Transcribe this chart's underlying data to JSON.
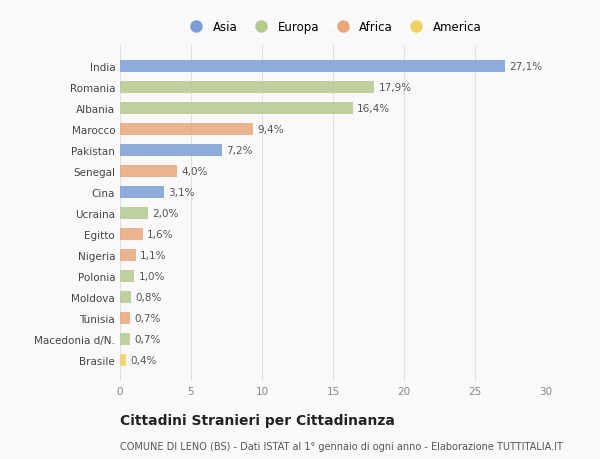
{
  "countries": [
    "India",
    "Romania",
    "Albania",
    "Marocco",
    "Pakistan",
    "Senegal",
    "Cina",
    "Ucraina",
    "Egitto",
    "Nigeria",
    "Polonia",
    "Moldova",
    "Tunisia",
    "Macedonia d/N.",
    "Brasile"
  ],
  "values": [
    27.1,
    17.9,
    16.4,
    9.4,
    7.2,
    4.0,
    3.1,
    2.0,
    1.6,
    1.1,
    1.0,
    0.8,
    0.7,
    0.7,
    0.4
  ],
  "labels": [
    "27,1%",
    "17,9%",
    "16,4%",
    "9,4%",
    "7,2%",
    "4,0%",
    "3,1%",
    "2,0%",
    "1,6%",
    "1,1%",
    "1,0%",
    "0,8%",
    "0,7%",
    "0,7%",
    "0,4%"
  ],
  "continents": [
    "Asia",
    "Europa",
    "Europa",
    "Africa",
    "Asia",
    "Africa",
    "Asia",
    "Europa",
    "Africa",
    "Africa",
    "Europa",
    "Europa",
    "Africa",
    "Europa",
    "America"
  ],
  "colors": {
    "Asia": "#7b9fd4",
    "Europa": "#b5c98e",
    "Africa": "#e8a87c",
    "America": "#f0d060"
  },
  "legend_order": [
    "Asia",
    "Europa",
    "Africa",
    "America"
  ],
  "title": "Cittadini Stranieri per Cittadinanza",
  "subtitle": "COMUNE DI LENO (BS) - Dati ISTAT al 1° gennaio di ogni anno - Elaborazione TUTTITALIA.IT",
  "xlim": [
    0,
    30
  ],
  "xticks": [
    0,
    5,
    10,
    15,
    20,
    25,
    30
  ],
  "bg_color": "#f9f9f9",
  "grid_color": "#e0e0e0",
  "label_fontsize": 7.5,
  "tick_fontsize": 7.5,
  "ytick_fontsize": 7.5,
  "title_fontsize": 10,
  "subtitle_fontsize": 7,
  "bar_height": 0.55
}
